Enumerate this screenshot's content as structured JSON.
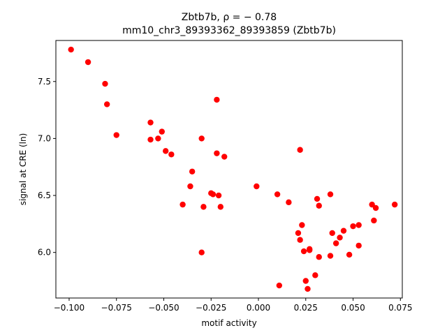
{
  "chart_data": {
    "type": "scatter",
    "title_line1": "Zbtb7b, ρ = − 0.78",
    "title_line2": "mm10_chr3_89393362_89393859 (Zbtb7b)",
    "xlabel": "motif activity",
    "ylabel": "signal at CRE (ln)",
    "xlim": [
      -0.107,
      0.076
    ],
    "ylim": [
      5.6,
      7.86
    ],
    "xticks": [
      -0.1,
      -0.075,
      -0.05,
      -0.025,
      0.0,
      0.025,
      0.05,
      0.075
    ],
    "xtick_labels": [
      "−0.100",
      "−0.075",
      "−0.050",
      "−0.025",
      "0.000",
      "0.025",
      "0.050",
      "0.075"
    ],
    "yticks": [
      6.0,
      6.5,
      7.0,
      7.5
    ],
    "ytick_labels": [
      "6.0",
      "6.5",
      "7.0",
      "7.5"
    ],
    "grid": false,
    "marker_color": "#ff0000",
    "points": [
      {
        "x": -0.099,
        "y": 7.78
      },
      {
        "x": -0.09,
        "y": 7.67
      },
      {
        "x": -0.081,
        "y": 7.48
      },
      {
        "x": -0.08,
        "y": 7.3
      },
      {
        "x": -0.075,
        "y": 7.03
      },
      {
        "x": -0.057,
        "y": 7.14
      },
      {
        "x": -0.051,
        "y": 7.06
      },
      {
        "x": -0.057,
        "y": 6.99
      },
      {
        "x": -0.053,
        "y": 7.0
      },
      {
        "x": -0.049,
        "y": 6.89
      },
      {
        "x": -0.046,
        "y": 6.86
      },
      {
        "x": -0.035,
        "y": 6.71
      },
      {
        "x": -0.03,
        "y": 7.0
      },
      {
        "x": -0.022,
        "y": 7.34
      },
      {
        "x": -0.022,
        "y": 6.87
      },
      {
        "x": -0.018,
        "y": 6.84
      },
      {
        "x": -0.036,
        "y": 6.58
      },
      {
        "x": -0.025,
        "y": 6.52
      },
      {
        "x": -0.024,
        "y": 6.51
      },
      {
        "x": -0.021,
        "y": 6.5
      },
      {
        "x": -0.04,
        "y": 6.42
      },
      {
        "x": -0.029,
        "y": 6.4
      },
      {
        "x": -0.02,
        "y": 6.4
      },
      {
        "x": -0.03,
        "y": 6.0
      },
      {
        "x": -0.001,
        "y": 6.58
      },
      {
        "x": 0.01,
        "y": 6.51
      },
      {
        "x": 0.016,
        "y": 6.44
      },
      {
        "x": 0.022,
        "y": 6.9
      },
      {
        "x": 0.031,
        "y": 6.47
      },
      {
        "x": 0.032,
        "y": 6.41
      },
      {
        "x": 0.038,
        "y": 6.51
      },
      {
        "x": 0.023,
        "y": 6.24
      },
      {
        "x": 0.021,
        "y": 6.17
      },
      {
        "x": 0.022,
        "y": 6.11
      },
      {
        "x": 0.024,
        "y": 6.01
      },
      {
        "x": 0.027,
        "y": 6.03
      },
      {
        "x": 0.027,
        "y": 6.02
      },
      {
        "x": 0.032,
        "y": 5.96
      },
      {
        "x": 0.03,
        "y": 5.8
      },
      {
        "x": 0.025,
        "y": 5.75
      },
      {
        "x": 0.026,
        "y": 5.68
      },
      {
        "x": 0.011,
        "y": 5.71
      },
      {
        "x": 0.039,
        "y": 6.17
      },
      {
        "x": 0.041,
        "y": 6.08
      },
      {
        "x": 0.043,
        "y": 6.13
      },
      {
        "x": 0.045,
        "y": 6.19
      },
      {
        "x": 0.038,
        "y": 5.97
      },
      {
        "x": 0.048,
        "y": 5.98
      },
      {
        "x": 0.05,
        "y": 6.23
      },
      {
        "x": 0.053,
        "y": 6.24
      },
      {
        "x": 0.053,
        "y": 6.06
      },
      {
        "x": 0.06,
        "y": 6.42
      },
      {
        "x": 0.062,
        "y": 6.39
      },
      {
        "x": 0.061,
        "y": 6.28
      },
      {
        "x": 0.072,
        "y": 6.42
      }
    ]
  }
}
